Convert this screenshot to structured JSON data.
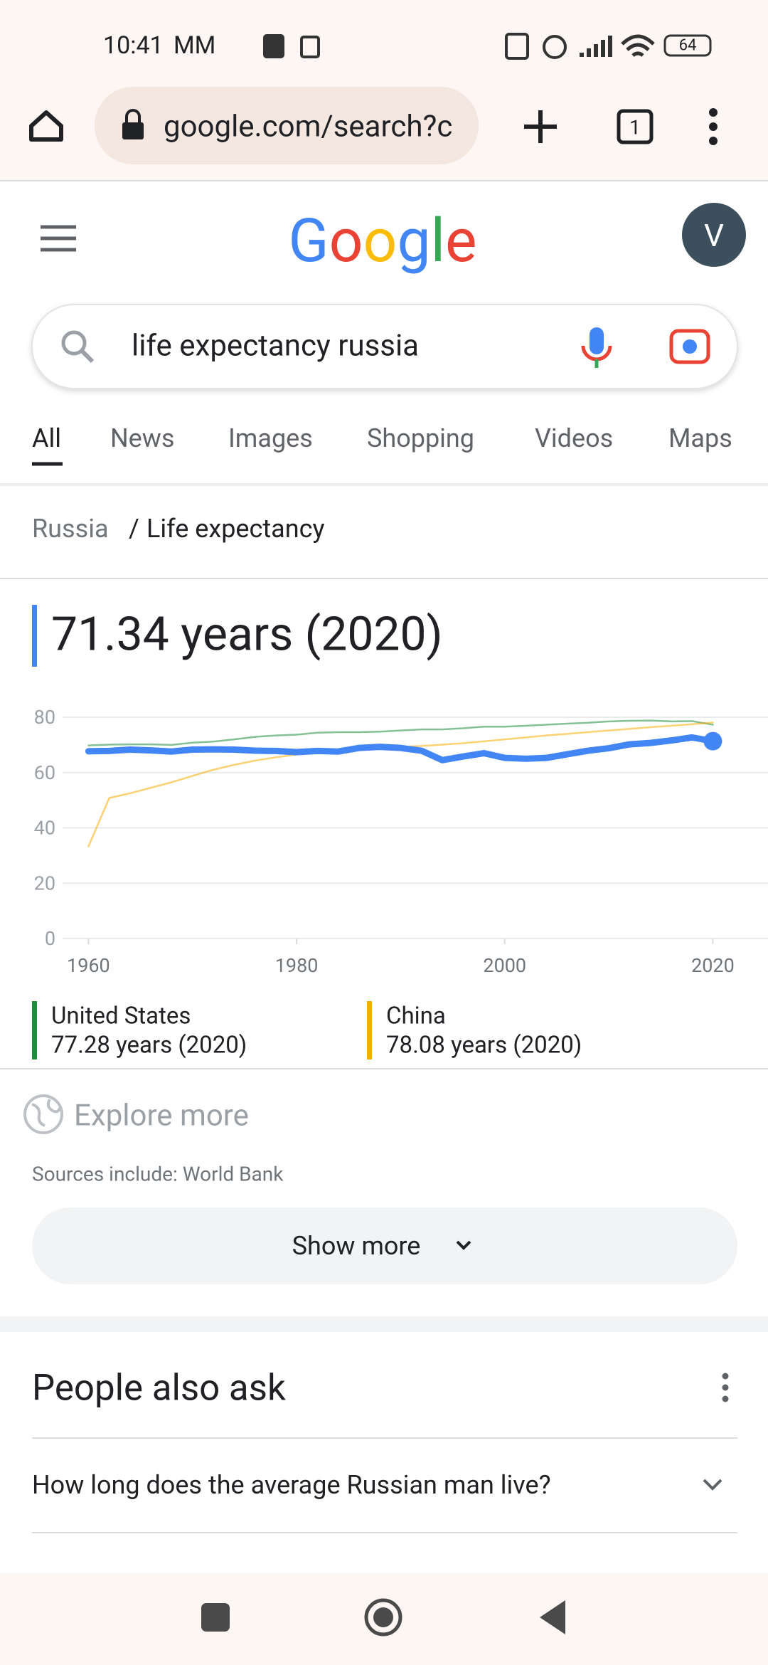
{
  "status_bar": {
    "time": "10:41",
    "carrier": "MM",
    "battery": "64"
  },
  "browser": {
    "url": "google.com/search?c",
    "tab_count": "1"
  },
  "header": {
    "logo": [
      "G",
      "o",
      "o",
      "g",
      "l",
      "e"
    ],
    "avatar": "V"
  },
  "search": {
    "query": "life expectancy russia"
  },
  "tabs": [
    "All",
    "News",
    "Images",
    "Shopping",
    "Videos",
    "Maps"
  ],
  "breadcrumb": {
    "items": [
      "Russia",
      "Life expectancy"
    ],
    "separator": "/"
  },
  "headline": "71.34 years (2020)",
  "chart_data": {
    "type": "line",
    "x": [
      1960,
      1962,
      1964,
      1966,
      1968,
      1970,
      1972,
      1974,
      1976,
      1978,
      1980,
      1982,
      1984,
      1986,
      1988,
      1990,
      1992,
      1994,
      1996,
      1998,
      2000,
      2002,
      2004,
      2006,
      2008,
      2010,
      2012,
      2014,
      2016,
      2018,
      2020
    ],
    "series": [
      {
        "name": "United States",
        "summary": "77.28 years (2020)",
        "color": "#1e8e3e",
        "values": [
          69.8,
          70.1,
          70.2,
          70.2,
          70.0,
          70.8,
          71.2,
          72.0,
          72.9,
          73.4,
          73.7,
          74.4,
          74.6,
          74.6,
          74.8,
          75.2,
          75.6,
          75.6,
          76.0,
          76.6,
          76.6,
          76.9,
          77.3,
          77.7,
          78.0,
          78.5,
          78.7,
          78.8,
          78.5,
          78.6,
          77.28
        ]
      },
      {
        "name": "China",
        "summary": "78.08 years (2020)",
        "color": "#f9ab00",
        "values": [
          33.3,
          50.8,
          52.5,
          54.5,
          56.5,
          58.8,
          61.0,
          62.8,
          64.3,
          65.5,
          66.5,
          67.4,
          67.9,
          68.3,
          68.8,
          69.3,
          69.6,
          70.1,
          70.6,
          71.3,
          72.0,
          72.7,
          73.4,
          74.0,
          74.6,
          75.2,
          75.8,
          76.4,
          76.9,
          77.5,
          78.08
        ]
      },
      {
        "color": "#4285f4",
        "values": [
          67.7,
          67.8,
          68.3,
          68.0,
          67.6,
          68.3,
          68.4,
          68.3,
          67.9,
          67.8,
          67.4,
          67.8,
          67.6,
          68.9,
          69.3,
          68.9,
          67.9,
          64.5,
          65.8,
          67.0,
          65.3,
          65.0,
          65.3,
          66.6,
          67.9,
          68.8,
          70.2,
          70.7,
          71.6,
          72.7,
          71.34
        ]
      }
    ],
    "xlim": [
      1951.5,
      2025.3
    ],
    "xticks": [
      1960,
      1980,
      2000,
      2020
    ],
    "ylim": [
      0,
      80
    ],
    "yticks": [
      0,
      20,
      40,
      60,
      80
    ],
    "grid": true
  },
  "explore": "Explore more",
  "sources": "Sources include: World Bank",
  "show_more": "Show more",
  "people_also_ask": {
    "title": "People also ask",
    "questions": [
      "How long does the average Russian man live?"
    ]
  }
}
